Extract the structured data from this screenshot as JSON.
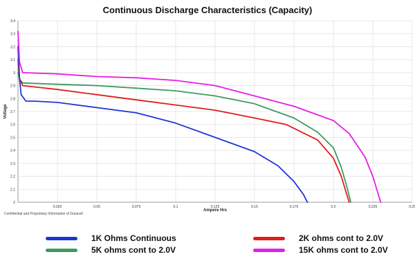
{
  "chart_data": {
    "type": "line",
    "title": "Continuous Discharge Characteristics (Capacity)",
    "xlabel": "Ampere Hrs",
    "ylabel": "Voltage",
    "xlim": [
      0,
      0.25
    ],
    "ylim": [
      2.0,
      3.4
    ],
    "x_ticks": [
      "0.025",
      "0.05",
      "0.075",
      "0.1",
      "0.125",
      "0.15",
      "0.175",
      "0.2",
      "0.225",
      "0.25"
    ],
    "y_ticks": [
      "2",
      "2.1",
      "2.2",
      "2.3",
      "2.4",
      "2.5",
      "2.6",
      "2.7",
      "2.8",
      "2.9",
      "3",
      "3.1",
      "3.2",
      "3.3",
      "3.4"
    ],
    "grid": true,
    "legend_position": "bottom",
    "series": [
      {
        "name": "1K Ohms Continuous",
        "color": "#1f35d6",
        "points": [
          [
            0.0,
            3.2
          ],
          [
            0.001,
            2.95
          ],
          [
            0.002,
            2.83
          ],
          [
            0.005,
            2.78
          ],
          [
            0.01,
            2.78
          ],
          [
            0.025,
            2.77
          ],
          [
            0.05,
            2.73
          ],
          [
            0.075,
            2.69
          ],
          [
            0.1,
            2.61
          ],
          [
            0.125,
            2.5
          ],
          [
            0.15,
            2.39
          ],
          [
            0.165,
            2.28
          ],
          [
            0.175,
            2.16
          ],
          [
            0.181,
            2.06
          ],
          [
            0.1835,
            2.0
          ]
        ]
      },
      {
        "name": "2K ohms cont to 2.0V",
        "color": "#e21b1b",
        "points": [
          [
            0.0,
            3.1
          ],
          [
            0.001,
            2.95
          ],
          [
            0.003,
            2.9
          ],
          [
            0.025,
            2.87
          ],
          [
            0.05,
            2.83
          ],
          [
            0.075,
            2.79
          ],
          [
            0.1,
            2.75
          ],
          [
            0.125,
            2.71
          ],
          [
            0.15,
            2.65
          ],
          [
            0.17,
            2.6
          ],
          [
            0.19,
            2.48
          ],
          [
            0.2,
            2.34
          ],
          [
            0.205,
            2.2
          ],
          [
            0.208,
            2.08
          ],
          [
            0.21,
            2.0
          ]
        ]
      },
      {
        "name": "5K ohms cont to 2.0V",
        "color": "#3d9a62",
        "points": [
          [
            0.0,
            3.0
          ],
          [
            0.001,
            2.95
          ],
          [
            0.003,
            2.92
          ],
          [
            0.025,
            2.91
          ],
          [
            0.05,
            2.9
          ],
          [
            0.075,
            2.88
          ],
          [
            0.1,
            2.86
          ],
          [
            0.125,
            2.82
          ],
          [
            0.15,
            2.76
          ],
          [
            0.175,
            2.65
          ],
          [
            0.19,
            2.54
          ],
          [
            0.2,
            2.42
          ],
          [
            0.205,
            2.27
          ],
          [
            0.209,
            2.1
          ],
          [
            0.211,
            2.0
          ]
        ]
      },
      {
        "name": "15K ohms cont to 2.0V",
        "color": "#e51ee5",
        "points": [
          [
            0.0,
            3.32
          ],
          [
            0.001,
            3.08
          ],
          [
            0.003,
            3.0
          ],
          [
            0.025,
            2.99
          ],
          [
            0.05,
            2.97
          ],
          [
            0.075,
            2.96
          ],
          [
            0.1,
            2.94
          ],
          [
            0.125,
            2.9
          ],
          [
            0.15,
            2.82
          ],
          [
            0.175,
            2.74
          ],
          [
            0.2,
            2.63
          ],
          [
            0.21,
            2.53
          ],
          [
            0.22,
            2.35
          ],
          [
            0.225,
            2.2
          ],
          [
            0.228,
            2.08
          ],
          [
            0.23,
            2.0
          ]
        ]
      }
    ]
  },
  "footnote": "Confidential and Proprietary Information of Duracell"
}
